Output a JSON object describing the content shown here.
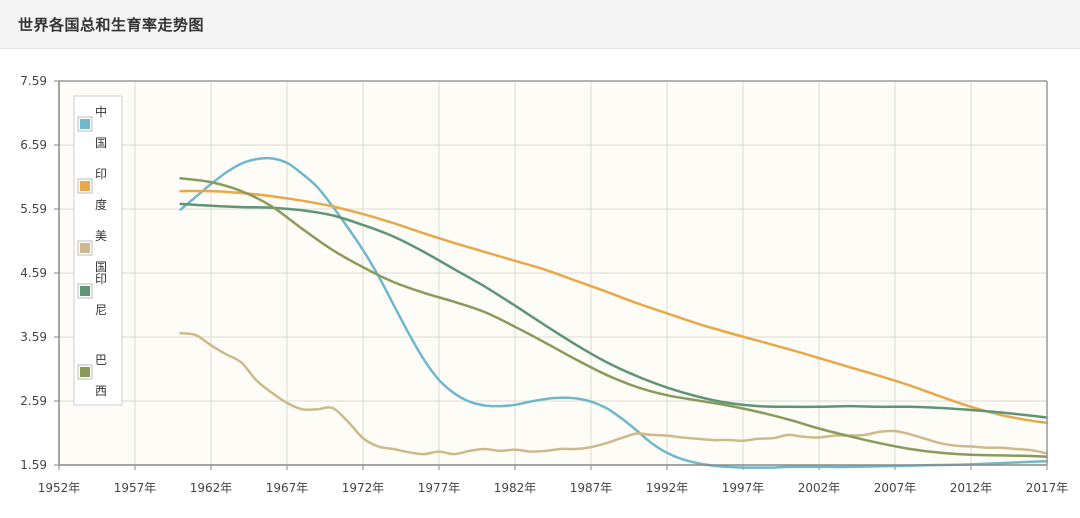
{
  "header": {
    "title": "世界各国总和生育率走势图"
  },
  "chart_data": {
    "type": "line",
    "title": "",
    "xlabel": "",
    "ylabel": "",
    "xlim": [
      1952,
      2017
    ],
    "ylim": [
      1.59,
      7.59
    ],
    "x_ticks": [
      "1952年",
      "1957年",
      "1962年",
      "1967年",
      "1972年",
      "1977年",
      "1982年",
      "1987年",
      "1992年",
      "1997年",
      "2002年",
      "2007年",
      "2012年",
      "2017年"
    ],
    "y_ticks": [
      "1.59",
      "2.59",
      "3.59",
      "4.59",
      "5.59",
      "6.59",
      "7.59"
    ],
    "grid": true,
    "legend_position": "top-left",
    "series": [
      {
        "name": "中国",
        "color": "#6fb8cc",
        "x": [
          1960,
          1961,
          1962,
          1963,
          1964,
          1965,
          1966,
          1967,
          1968,
          1969,
          1970,
          1971,
          1972,
          1973,
          1974,
          1975,
          1976,
          1977,
          1978,
          1979,
          1980,
          1981,
          1982,
          1983,
          1984,
          1985,
          1986,
          1987,
          1988,
          1989,
          1990,
          1991,
          1992,
          1993,
          1994,
          1995,
          1996,
          1997,
          1998,
          1999,
          2000,
          2002,
          2004,
          2006,
          2008,
          2010,
          2012,
          2014,
          2016,
          2017
        ],
        "y": [
          5.58,
          5.78,
          5.98,
          6.16,
          6.3,
          6.37,
          6.38,
          6.31,
          6.14,
          5.93,
          5.63,
          5.3,
          4.95,
          4.55,
          4.1,
          3.65,
          3.24,
          2.92,
          2.71,
          2.58,
          2.52,
          2.51,
          2.53,
          2.58,
          2.62,
          2.64,
          2.63,
          2.58,
          2.48,
          2.32,
          2.13,
          1.93,
          1.78,
          1.68,
          1.62,
          1.58,
          1.56,
          1.55,
          1.55,
          1.55,
          1.56,
          1.56,
          1.56,
          1.57,
          1.58,
          1.59,
          1.6,
          1.62,
          1.64,
          1.65
        ]
      },
      {
        "name": "印度",
        "color": "#e8a84a",
        "x": [
          1960,
          1962,
          1964,
          1966,
          1968,
          1970,
          1972,
          1974,
          1976,
          1978,
          1980,
          1982,
          1984,
          1986,
          1988,
          1990,
          1992,
          1994,
          1996,
          1998,
          2000,
          2002,
          2004,
          2006,
          2008,
          2010,
          2012,
          2014,
          2016,
          2017
        ],
        "y": [
          5.87,
          5.87,
          5.84,
          5.79,
          5.72,
          5.63,
          5.51,
          5.37,
          5.21,
          5.06,
          4.92,
          4.78,
          4.64,
          4.47,
          4.3,
          4.12,
          3.96,
          3.8,
          3.66,
          3.53,
          3.4,
          3.26,
          3.12,
          2.98,
          2.83,
          2.66,
          2.5,
          2.37,
          2.28,
          2.25
        ]
      },
      {
        "name": "美国",
        "color": "#cdb98a",
        "x": [
          1960,
          1961,
          1962,
          1963,
          1964,
          1965,
          1966,
          1967,
          1968,
          1969,
          1970,
          1971,
          1972,
          1973,
          1974,
          1975,
          1976,
          1977,
          1978,
          1979,
          1980,
          1981,
          1982,
          1983,
          1984,
          1985,
          1986,
          1987,
          1988,
          1989,
          1990,
          1991,
          1992,
          1993,
          1994,
          1995,
          1996,
          1997,
          1998,
          1999,
          2000,
          2001,
          2002,
          2003,
          2004,
          2005,
          2006,
          2007,
          2008,
          2009,
          2010,
          2011,
          2012,
          2013,
          2014,
          2015,
          2016,
          2017
        ],
        "y": [
          3.65,
          3.62,
          3.46,
          3.32,
          3.19,
          2.91,
          2.72,
          2.56,
          2.46,
          2.46,
          2.48,
          2.27,
          2.01,
          1.88,
          1.84,
          1.79,
          1.76,
          1.8,
          1.76,
          1.81,
          1.84,
          1.81,
          1.83,
          1.8,
          1.81,
          1.84,
          1.84,
          1.87,
          1.93,
          2.01,
          2.08,
          2.06,
          2.05,
          2.02,
          2.0,
          1.98,
          1.98,
          1.97,
          2.0,
          2.01,
          2.06,
          2.03,
          2.02,
          2.05,
          2.05,
          2.06,
          2.11,
          2.12,
          2.07,
          2.0,
          1.93,
          1.89,
          1.88,
          1.86,
          1.86,
          1.84,
          1.82,
          1.77
        ]
      },
      {
        "name": "印尼",
        "color": "#5f9476",
        "x": [
          1960,
          1962,
          1964,
          1966,
          1968,
          1970,
          1972,
          1974,
          1976,
          1978,
          1980,
          1982,
          1984,
          1986,
          1988,
          1990,
          1992,
          1994,
          1996,
          1998,
          2000,
          2002,
          2004,
          2006,
          2008,
          2010,
          2012,
          2014,
          2016,
          2017
        ],
        "y": [
          5.67,
          5.64,
          5.62,
          5.61,
          5.57,
          5.49,
          5.34,
          5.16,
          4.92,
          4.65,
          4.38,
          4.08,
          3.77,
          3.47,
          3.2,
          2.98,
          2.8,
          2.66,
          2.56,
          2.51,
          2.5,
          2.5,
          2.51,
          2.5,
          2.5,
          2.48,
          2.45,
          2.41,
          2.36,
          2.33
        ]
      },
      {
        "name": "巴西",
        "color": "#8a9a5b",
        "x": [
          1960,
          1962,
          1964,
          1966,
          1968,
          1970,
          1972,
          1974,
          1976,
          1978,
          1980,
          1982,
          1984,
          1986,
          1988,
          1990,
          1992,
          1994,
          1996,
          1998,
          2000,
          2002,
          2004,
          2006,
          2008,
          2010,
          2012,
          2014,
          2016,
          2017
        ],
        "y": [
          6.07,
          6.01,
          5.87,
          5.63,
          5.28,
          4.95,
          4.68,
          4.45,
          4.28,
          4.14,
          3.98,
          3.75,
          3.5,
          3.24,
          3.0,
          2.81,
          2.68,
          2.6,
          2.52,
          2.42,
          2.3,
          2.16,
          2.04,
          1.93,
          1.84,
          1.78,
          1.75,
          1.74,
          1.73,
          1.72
        ]
      }
    ]
  }
}
